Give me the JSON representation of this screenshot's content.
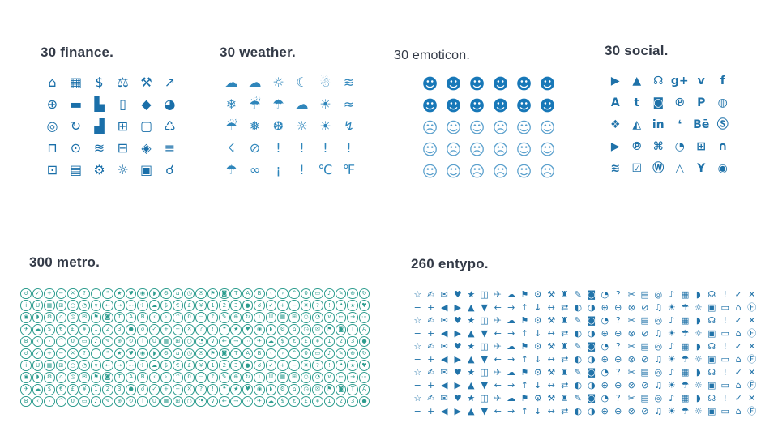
{
  "page": {
    "background": "#ffffff"
  },
  "colors": {
    "title": "#333a47"
  },
  "sections": [
    {
      "id": "finance",
      "title": "30 finance.",
      "columns": 6,
      "color": "#1a6fa9",
      "icons": [
        {
          "name": "bank-icon",
          "glyph": "⌂"
        },
        {
          "name": "calendar-icon",
          "glyph": "▦"
        },
        {
          "name": "money-bag-icon",
          "glyph": "$"
        },
        {
          "name": "scales-icon",
          "glyph": "⚖"
        },
        {
          "name": "gavel-icon",
          "glyph": "⚒"
        },
        {
          "name": "growth-chart-icon",
          "glyph": "↗"
        },
        {
          "name": "globe-icon",
          "glyph": "⊕"
        },
        {
          "name": "banknote-icon",
          "glyph": "▬"
        },
        {
          "name": "bar-chart-icon",
          "glyph": "▙"
        },
        {
          "name": "mobile-chart-icon",
          "glyph": "▯"
        },
        {
          "name": "diamond-icon",
          "glyph": "◆"
        },
        {
          "name": "pie-chart-icon",
          "glyph": "◕"
        },
        {
          "name": "target-icon",
          "glyph": "◎"
        },
        {
          "name": "money-cycle-icon",
          "glyph": "↻"
        },
        {
          "name": "column-chart-icon",
          "glyph": "▟"
        },
        {
          "name": "calculator-icon",
          "glyph": "⊞"
        },
        {
          "name": "monitor-chart-icon",
          "glyph": "▢"
        },
        {
          "name": "trash-icon",
          "glyph": "♺"
        },
        {
          "name": "unlock-icon",
          "glyph": "⊓"
        },
        {
          "name": "dollar-coin-icon",
          "glyph": "⊙"
        },
        {
          "name": "world-map-icon",
          "glyph": "≋"
        },
        {
          "name": "math-calculator-icon",
          "glyph": "⊟"
        },
        {
          "name": "shield-icon",
          "glyph": "◈"
        },
        {
          "name": "document-icon",
          "glyph": "≡"
        },
        {
          "name": "lock-icon",
          "glyph": "⊡"
        },
        {
          "name": "id-card-icon",
          "glyph": "▤"
        },
        {
          "name": "gears-icon",
          "glyph": "⚙"
        },
        {
          "name": "idea-bulb-icon",
          "glyph": "☼"
        },
        {
          "name": "briefcase-icon",
          "glyph": "▣"
        },
        {
          "name": "magnifier-icon",
          "glyph": "☌"
        }
      ]
    },
    {
      "id": "weather",
      "title": "30 weather.",
      "columns": 6,
      "color": "#2f86bb",
      "icons": [
        {
          "name": "cloud-outline-icon",
          "glyph": "☁"
        },
        {
          "name": "cloud-filled-icon",
          "glyph": "☁"
        },
        {
          "name": "partly-sunny-icon",
          "glyph": "☼"
        },
        {
          "name": "moon-cloud-icon",
          "glyph": "☾"
        },
        {
          "name": "snow-cloud-icon",
          "glyph": "☃"
        },
        {
          "name": "wind-cloud-icon",
          "glyph": "≋"
        },
        {
          "name": "sun-snow-cloud-icon",
          "glyph": "❄"
        },
        {
          "name": "rain-cloud-icon",
          "glyph": "☔"
        },
        {
          "name": "sun-rain-cloud-icon",
          "glyph": "☂"
        },
        {
          "name": "drizzle-cloud-icon",
          "glyph": "☁"
        },
        {
          "name": "sun-shower-cloud-icon",
          "glyph": "☀"
        },
        {
          "name": "sun-wind-cloud-icon",
          "glyph": "≈"
        },
        {
          "name": "downpour-cloud-icon",
          "glyph": "☔"
        },
        {
          "name": "sun-sleet-cloud-icon",
          "glyph": "❅"
        },
        {
          "name": "snow-shower-cloud-icon",
          "glyph": "❆"
        },
        {
          "name": "sun-flurry-cloud-icon",
          "glyph": "☼"
        },
        {
          "name": "sun-icon",
          "glyph": "☀"
        },
        {
          "name": "storm-cloud-icon",
          "glyph": "↯"
        },
        {
          "name": "sun-storm-cloud-icon",
          "glyph": "☇"
        },
        {
          "name": "barometer-icon",
          "glyph": "⊘"
        },
        {
          "name": "thermometer-icon",
          "glyph": "!"
        },
        {
          "name": "thermometer-icon",
          "glyph": "!"
        },
        {
          "name": "thermometer-icon",
          "glyph": "!"
        },
        {
          "name": "thermometer-icon",
          "glyph": "!"
        },
        {
          "name": "umbrella-icon",
          "glyph": "☂"
        },
        {
          "name": "sunglasses-icon",
          "glyph": "∞"
        },
        {
          "name": "thermometer-cold-icon",
          "glyph": "¡"
        },
        {
          "name": "thermometer-hot-icon",
          "glyph": "!"
        },
        {
          "name": "celsius-icon",
          "glyph": "℃"
        },
        {
          "name": "fahrenheit-icon",
          "glyph": "℉"
        }
      ]
    },
    {
      "id": "emoticon",
      "title": "30 emoticon.",
      "columns": 6,
      "color": "#1878b8",
      "outline_color": "#5aa0cd",
      "icons": [
        {
          "name": "grin-filled-emoticon",
          "glyph": "☻",
          "variant": "filled"
        },
        {
          "name": "smile-filled-emoticon",
          "glyph": "☻",
          "variant": "filled"
        },
        {
          "name": "laugh-filled-emoticon",
          "glyph": "☻",
          "variant": "filled"
        },
        {
          "name": "tongue-filled-emoticon",
          "glyph": "☻",
          "variant": "filled"
        },
        {
          "name": "uneasy-filled-emoticon",
          "glyph": "☻",
          "variant": "filled"
        },
        {
          "name": "surprised-filled-emoticon",
          "glyph": "☻",
          "variant": "filled"
        },
        {
          "name": "angry-filled-emoticon",
          "glyph": "☻",
          "variant": "filled"
        },
        {
          "name": "neutral-filled-emoticon",
          "glyph": "☻",
          "variant": "filled"
        },
        {
          "name": "happy-filled-emoticon",
          "glyph": "☻",
          "variant": "filled"
        },
        {
          "name": "love-filled-emoticon",
          "glyph": "☻",
          "variant": "filled"
        },
        {
          "name": "sad-filled-emoticon",
          "glyph": "☻",
          "variant": "filled"
        },
        {
          "name": "hesitant-filled-emoticon",
          "glyph": "☻",
          "variant": "filled"
        },
        {
          "name": "worried-emoticon",
          "glyph": "☹",
          "variant": "outline"
        },
        {
          "name": "tongue-out-emoticon",
          "glyph": "☺",
          "variant": "outline"
        },
        {
          "name": "skeptical-emoticon",
          "glyph": "☺",
          "variant": "outline"
        },
        {
          "name": "crying-emoticon",
          "glyph": "☹",
          "variant": "outline"
        },
        {
          "name": "wink-emoticon",
          "glyph": "☺",
          "variant": "outline"
        },
        {
          "name": "cheeky-emoticon",
          "glyph": "☺",
          "variant": "outline"
        },
        {
          "name": "content-emoticon",
          "glyph": "☺",
          "variant": "outline"
        },
        {
          "name": "unhappy-emoticon",
          "glyph": "☹",
          "variant": "outline"
        },
        {
          "name": "distressed-emoticon",
          "glyph": "☹",
          "variant": "outline"
        },
        {
          "name": "anguished-emoticon",
          "glyph": "☹",
          "variant": "outline"
        },
        {
          "name": "smiling-emoticon",
          "glyph": "☺",
          "variant": "outline"
        },
        {
          "name": "winking-emoticon",
          "glyph": "☺",
          "variant": "outline"
        },
        {
          "name": "calm-emoticon",
          "glyph": "☺",
          "variant": "outline"
        },
        {
          "name": "neutral-emoticon",
          "glyph": "☺",
          "variant": "outline"
        },
        {
          "name": "flat-emoticon",
          "glyph": "☹",
          "variant": "outline"
        },
        {
          "name": "frowning-emoticon",
          "glyph": "☹",
          "variant": "outline"
        },
        {
          "name": "wry-emoticon",
          "glyph": "☺",
          "variant": "outline"
        },
        {
          "name": "sad-emoticon",
          "glyph": "☹",
          "variant": "outline"
        }
      ]
    },
    {
      "id": "social",
      "title": "30 social.",
      "columns": 6,
      "color": "#1f72a9",
      "icons": [
        {
          "name": "youtube-icon",
          "glyph": "▶"
        },
        {
          "name": "forrst-icon",
          "glyph": "▲"
        },
        {
          "name": "rss-icon",
          "glyph": "☊"
        },
        {
          "name": "google-plus-icon",
          "glyph": "g+"
        },
        {
          "name": "vimeo-icon",
          "glyph": "v"
        },
        {
          "name": "facebook-icon",
          "glyph": "f"
        },
        {
          "name": "adn-icon",
          "glyph": "A"
        },
        {
          "name": "tumblr-icon",
          "glyph": "t"
        },
        {
          "name": "instagram-icon",
          "glyph": "◙"
        },
        {
          "name": "pinterest-icon",
          "glyph": "℗"
        },
        {
          "name": "paypal-icon",
          "glyph": "P"
        },
        {
          "name": "dribbble-icon",
          "glyph": "◍"
        },
        {
          "name": "dropbox-icon",
          "glyph": "❖"
        },
        {
          "name": "deviantart-icon",
          "glyph": "◭"
        },
        {
          "name": "linkedin-icon",
          "glyph": "in"
        },
        {
          "name": "twitter-icon",
          "glyph": "❛"
        },
        {
          "name": "behance-icon",
          "glyph": "Bē"
        },
        {
          "name": "skype-icon",
          "glyph": "Ⓢ"
        },
        {
          "name": "youtube-play-icon",
          "glyph": "▶"
        },
        {
          "name": "pinterest-circle-icon",
          "glyph": "℗"
        },
        {
          "name": "apple-icon",
          "glyph": "⌘"
        },
        {
          "name": "grooveshark-icon",
          "glyph": "◔"
        },
        {
          "name": "windows-icon",
          "glyph": "⊞"
        },
        {
          "name": "android-icon",
          "glyph": "∩"
        },
        {
          "name": "soundcloud-icon",
          "glyph": "≋"
        },
        {
          "name": "stack-check-icon",
          "glyph": "☑"
        },
        {
          "name": "wordpress-icon",
          "glyph": "Ⓦ"
        },
        {
          "name": "google-drive-icon",
          "glyph": "△"
        },
        {
          "name": "yahoo-icon",
          "glyph": "Y"
        },
        {
          "name": "chrome-icon",
          "glyph": "◉"
        }
      ]
    },
    {
      "id": "metro",
      "title": "300 metro.",
      "columns": 30,
      "count": 300,
      "color": "#2d9c8e",
      "glyph_cycle": "☌✓+−✕?!❝★♥◉◗⚙⌂◷✉⚑◙TAB‹›^0▭♪✎⊕↻iU▦⊞○◔∨←→⋯✈☁$€£¥123●"
    },
    {
      "id": "entypo",
      "title": "260 entypo.",
      "columns": 26,
      "count": 260,
      "color": "#2173a9",
      "glyph_cycle": "☆✍✉♥★◫✈☁⚑⚙⚒♜✎◙◔?✂▤◎♪▦◗☊!✓✕−+◀▶▲▼←→↑↓↔⇄◐◑⊕⊖⊗⊘♫☀☂☼▣▭⌂Ⓕ"
    }
  ]
}
